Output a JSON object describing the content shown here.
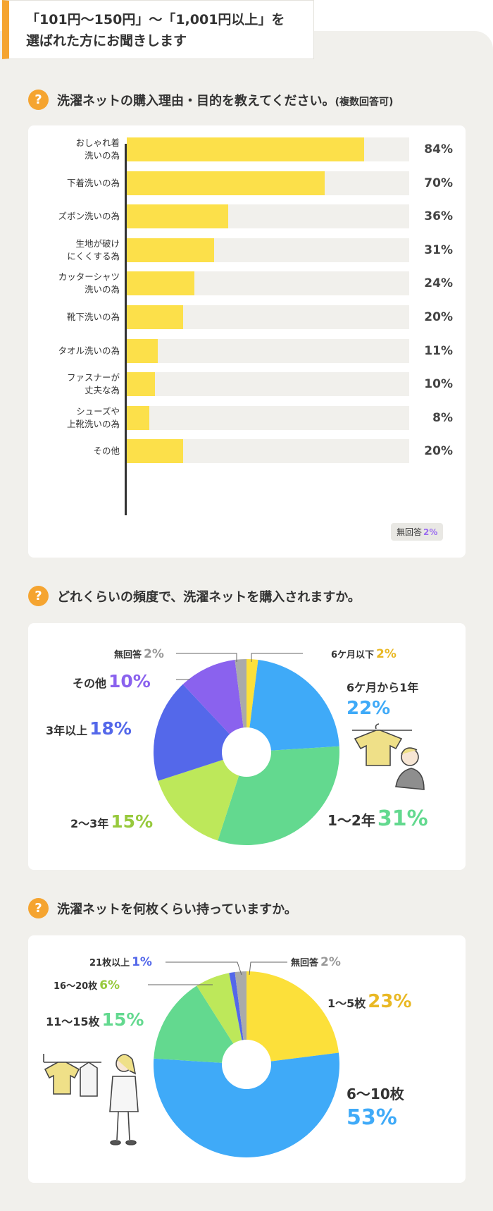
{
  "header": {
    "line1": "「101円〜150円」〜「1,001円以上」を",
    "line2": "選ばれた方にお聞きします"
  },
  "q1": {
    "mark": "?",
    "title": "洗濯ネットの購入理由・目的を教えてください。",
    "note": "(複数回答可)"
  },
  "q2": {
    "mark": "?",
    "title": "どれくらいの頻度で、洗濯ネットを購入されますか。"
  },
  "q3": {
    "mark": "?",
    "title": "洗濯ネットを何枚くらい持っていますか。"
  },
  "colors": {
    "accent_orange": "#f5a430",
    "bar_yellow": "#fce04a",
    "yellow": "#fce03a",
    "blue": "#3faaf8",
    "green": "#63d98f",
    "lime": "#bde85a",
    "indigo": "#5468ea",
    "purple": "#8a62ee",
    "gray": "#aaaaaa"
  },
  "chart_data": [
    {
      "type": "bar",
      "orientation": "horizontal",
      "categories": [
        [
          "おしゃれ着",
          "洗いの為"
        ],
        [
          "下着洗いの為"
        ],
        [
          "ズボン洗いの為"
        ],
        [
          "生地が破け",
          "にくくする為"
        ],
        [
          "カッターシャツ",
          "洗いの為"
        ],
        [
          "靴下洗いの為"
        ],
        [
          "タオル洗いの為"
        ],
        [
          "ファスナーが",
          "丈夫な為"
        ],
        [
          "シューズや",
          "上靴洗いの為"
        ],
        [
          "その他"
        ]
      ],
      "values": [
        84,
        70,
        36,
        31,
        24,
        20,
        11,
        10,
        8,
        20
      ],
      "value_labels": [
        "84%",
        "70%",
        "36%",
        "31%",
        "24%",
        "20%",
        "11%",
        "10%",
        "8%",
        "20%"
      ],
      "xlim": [
        0,
        100
      ],
      "no_answer": {
        "label": "無回答",
        "value": "2%"
      }
    },
    {
      "type": "pie",
      "slices": [
        {
          "name": "6ケ月以下",
          "value": 2,
          "label": "2%",
          "color": "#fce03a"
        },
        {
          "name": "6ケ月から1年",
          "value": 22,
          "label": "22%",
          "color": "#3faaf8"
        },
        {
          "name": "1〜2年",
          "value": 31,
          "label": "31%",
          "color": "#63d98f"
        },
        {
          "name": "2〜3年",
          "value": 15,
          "label": "15%",
          "color": "#bde85a"
        },
        {
          "name": "3年以上",
          "value": 18,
          "label": "18%",
          "color": "#5468ea"
        },
        {
          "name": "その他",
          "value": 10,
          "label": "10%",
          "color": "#8a62ee"
        },
        {
          "name": "無回答",
          "value": 2,
          "label": "2%",
          "color": "#aaaaaa"
        }
      ]
    },
    {
      "type": "pie",
      "slices": [
        {
          "name": "1〜5枚",
          "value": 23,
          "label": "23%",
          "color": "#fce03a"
        },
        {
          "name": "6〜10枚",
          "value": 53,
          "label": "53%",
          "color": "#3faaf8"
        },
        {
          "name": "11〜15枚",
          "value": 15,
          "label": "15%",
          "color": "#63d98f"
        },
        {
          "name": "16〜20枚",
          "value": 6,
          "label": "6%",
          "color": "#bde85a"
        },
        {
          "name": "21枚以上",
          "value": 1,
          "label": "1%",
          "color": "#5468ea"
        },
        {
          "name": "無回答",
          "value": 2,
          "label": "2%",
          "color": "#aaaaaa"
        }
      ]
    }
  ]
}
